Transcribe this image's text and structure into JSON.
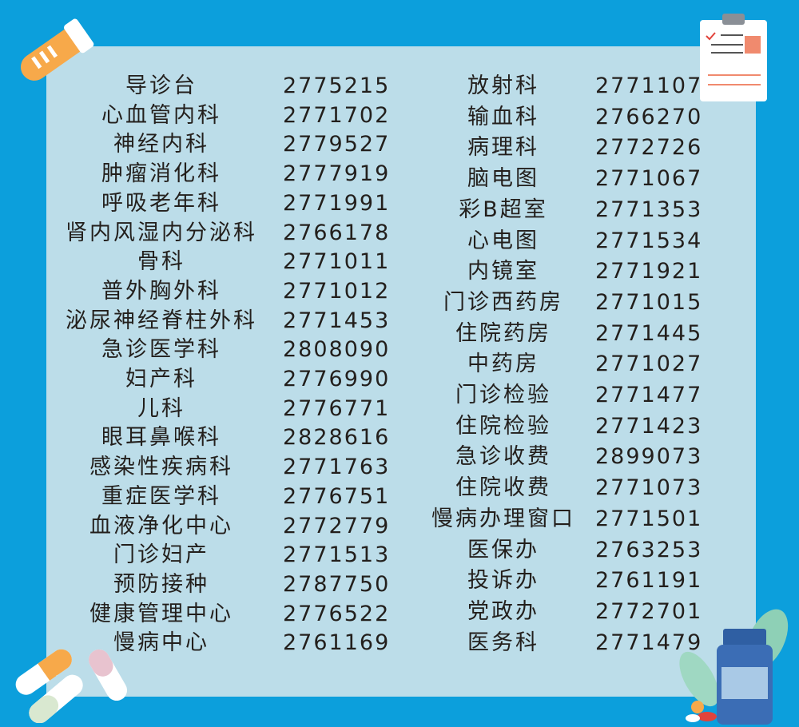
{
  "colors": {
    "background": "#0c9fdc",
    "panel": "#bcdde9",
    "text": "#231f1c",
    "accent_orange": "#f7a94a"
  },
  "icons": [
    "test-tube-icon",
    "clipboard-icon",
    "pills-icon",
    "medicine-bottle-icon",
    "leaf-icon"
  ],
  "left_column": [
    {
      "name": "导诊台",
      "phone": "2775215"
    },
    {
      "name": "心血管内科",
      "phone": "2771702"
    },
    {
      "name": "神经内科",
      "phone": "2779527"
    },
    {
      "name": "肿瘤消化科",
      "phone": "2777919"
    },
    {
      "name": "呼吸老年科",
      "phone": "2771991"
    },
    {
      "name": "肾内风湿内分泌科",
      "phone": "2766178"
    },
    {
      "name": "骨科",
      "phone": "2771011"
    },
    {
      "name": "普外胸外科",
      "phone": "2771012"
    },
    {
      "name": "泌尿神经脊柱外科",
      "phone": "2771453"
    },
    {
      "name": "急诊医学科",
      "phone": "2808090"
    },
    {
      "name": "妇产科",
      "phone": "2776990"
    },
    {
      "name": "儿科",
      "phone": "2776771"
    },
    {
      "name": "眼耳鼻喉科",
      "phone": "2828616"
    },
    {
      "name": "感染性疾病科",
      "phone": "2771763"
    },
    {
      "name": "重症医学科",
      "phone": "2776751"
    },
    {
      "name": "血液净化中心",
      "phone": "2772779"
    },
    {
      "name": "门诊妇产",
      "phone": "2771513"
    },
    {
      "name": "预防接种",
      "phone": "2787750"
    },
    {
      "name": "健康管理中心",
      "phone": "2776522"
    },
    {
      "name": "慢病中心",
      "phone": "2761169"
    }
  ],
  "right_column": [
    {
      "name": "放射科",
      "phone": "2771107"
    },
    {
      "name": "输血科",
      "phone": "2766270"
    },
    {
      "name": "病理科",
      "phone": "2772726"
    },
    {
      "name": "脑电图",
      "phone": "2771067"
    },
    {
      "name": "彩B超室",
      "phone": "2771353"
    },
    {
      "name": "心电图",
      "phone": "2771534"
    },
    {
      "name": "内镜室",
      "phone": "2771921"
    },
    {
      "name": "门诊西药房",
      "phone": "2771015"
    },
    {
      "name": "住院药房",
      "phone": "2771445"
    },
    {
      "name": "中药房",
      "phone": "2771027"
    },
    {
      "name": "门诊检验",
      "phone": "2771477"
    },
    {
      "name": "住院检验",
      "phone": "2771423"
    },
    {
      "name": "急诊收费",
      "phone": "2899073"
    },
    {
      "name": "住院收费",
      "phone": "2771073"
    },
    {
      "name": "慢病办理窗口",
      "phone": "2771501"
    },
    {
      "name": "医保办",
      "phone": "2763253"
    },
    {
      "name": "投诉办",
      "phone": "2761191"
    },
    {
      "name": "党政办",
      "phone": "2772701"
    },
    {
      "name": "医务科",
      "phone": "2771479"
    }
  ]
}
